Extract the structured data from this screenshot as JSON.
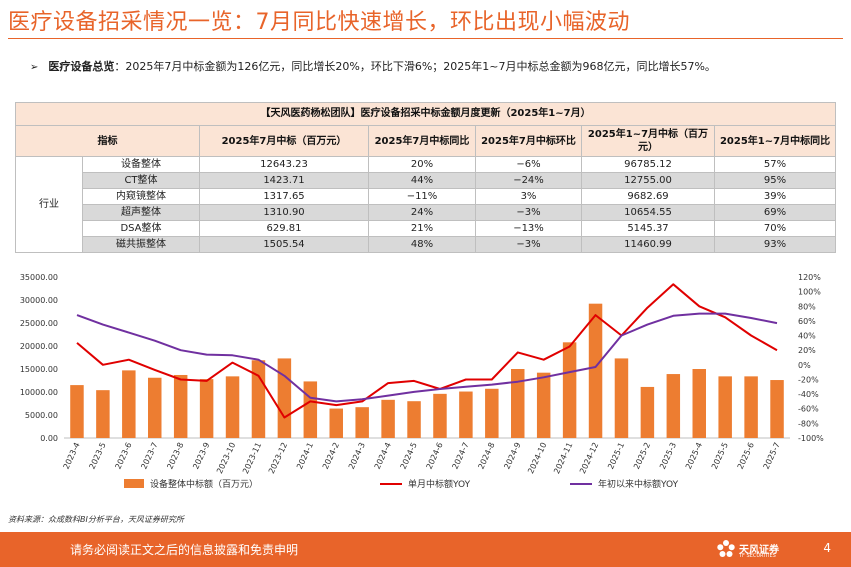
{
  "page": {
    "title": "医疗设备招采情况一览：7月同比快速增长，环比出现小幅波动",
    "bullet_label": "医疗设备总览",
    "bullet_text": "：2025年7月中标金额为126亿元，同比增长20%，环比下滑6%；2025年1~7月中标总金额为968亿元，同比增长57%。",
    "source": "资料来源：众成数科BI分析平台，天风证券研究所",
    "disclaimer": "请务必阅读正文之后的信息披露和免责申明",
    "page_number": "4",
    "logo_text": "天风证券",
    "logo_subtext": "TF SECURITIES",
    "accent_color": "#e8642a"
  },
  "table": {
    "caption": "【天风医药杨松团队】医疗设备招采中标金额月度更新（2025年1~7月）",
    "headers": [
      "指标",
      "2025年7月中标（百万元）",
      "2025年7月中标同比",
      "2025年7月中标环比",
      "2025年1~7月中标（百万元）",
      "2025年1~7月中标同比"
    ],
    "group_label": "行业",
    "rows": [
      {
        "name": "设备整体",
        "jul_amount": "12643.23",
        "jul_yoy": "20%",
        "jul_mom": "−6%",
        "ytd_amount": "96785.12",
        "ytd_yoy": "57%"
      },
      {
        "name": "CT整体",
        "jul_amount": "1423.71",
        "jul_yoy": "44%",
        "jul_mom": "−24%",
        "ytd_amount": "12755.00",
        "ytd_yoy": "95%"
      },
      {
        "name": "内窥镜整体",
        "jul_amount": "1317.65",
        "jul_yoy": "−11%",
        "jul_mom": "3%",
        "ytd_amount": "9682.69",
        "ytd_yoy": "39%"
      },
      {
        "name": "超声整体",
        "jul_amount": "1310.90",
        "jul_yoy": "24%",
        "jul_mom": "−3%",
        "ytd_amount": "10654.55",
        "ytd_yoy": "69%"
      },
      {
        "name": "DSA整体",
        "jul_amount": "629.81",
        "jul_yoy": "21%",
        "jul_mom": "−13%",
        "ytd_amount": "5145.37",
        "ytd_yoy": "70%"
      },
      {
        "name": "磁共振整体",
        "jul_amount": "1505.54",
        "jul_yoy": "48%",
        "jul_mom": "−3%",
        "ytd_amount": "11460.99",
        "ytd_yoy": "93%"
      }
    ]
  },
  "chart_data": {
    "type": "bar",
    "categories": [
      "2023-4",
      "2023-5",
      "2023-6",
      "2023-7",
      "2023-8",
      "2023-9",
      "2023-10",
      "2023-11",
      "2023-12",
      "2024-1",
      "2024-2",
      "2024-3",
      "2024-4",
      "2024-5",
      "2024-6",
      "2024-7",
      "2024-8",
      "2024-9",
      "2024-10",
      "2024-11",
      "2024-12",
      "2025-1",
      "2025-2",
      "2025-3",
      "2025-4",
      "2025-5",
      "2025-6",
      "2025-7"
    ],
    "series": [
      {
        "name": "设备整体中标额（百万元）",
        "type": "bar",
        "axis": "left",
        "color": "#ed7d31",
        "values": [
          11500,
          10400,
          14700,
          13100,
          13700,
          12800,
          13400,
          16900,
          17300,
          12300,
          6400,
          6700,
          8300,
          8000,
          9600,
          10100,
          10700,
          15000,
          14200,
          20800,
          29200,
          17300,
          11100,
          13900,
          15000,
          13400,
          13400,
          12600
        ]
      },
      {
        "name": "单月中标额YOY",
        "type": "line",
        "axis": "right",
        "color": "#e00000",
        "values": [
          30,
          0,
          7,
          -7,
          -20,
          -22,
          3,
          -15,
          -72,
          -50,
          -55,
          -50,
          -25,
          -22,
          -33,
          -20,
          -20,
          17,
          7,
          25,
          68,
          40,
          78,
          110,
          80,
          65,
          40,
          20
        ]
      },
      {
        "name": "年初以来中标额YOY",
        "type": "line",
        "axis": "right",
        "color": "#7030a0",
        "values": [
          68,
          55,
          44,
          33,
          20,
          14,
          13,
          7,
          -15,
          -45,
          -50,
          -47,
          -42,
          -37,
          -33,
          -30,
          -27,
          -23,
          -17,
          -10,
          -3,
          40,
          55,
          67,
          70,
          70,
          64,
          57
        ]
      }
    ],
    "left_axis": {
      "min": 0,
      "max": 35000,
      "step": 5000,
      "tick_labels": [
        "0.00",
        "5000.00",
        "10000.00",
        "15000.00",
        "20000.00",
        "25000.00",
        "30000.00",
        "35000.00"
      ]
    },
    "right_axis": {
      "min": -100,
      "max": 120,
      "step": 20,
      "tick_labels": [
        "-100%",
        "-80%",
        "-60%",
        "-40%",
        "-20%",
        "0%",
        "20%",
        "40%",
        "60%",
        "80%",
        "100%",
        "120%"
      ]
    },
    "legend": [
      "设备整体中标额（百万元）",
      "单月中标额YOY",
      "年初以来中标额YOY"
    ],
    "legend_position": "bottom"
  }
}
